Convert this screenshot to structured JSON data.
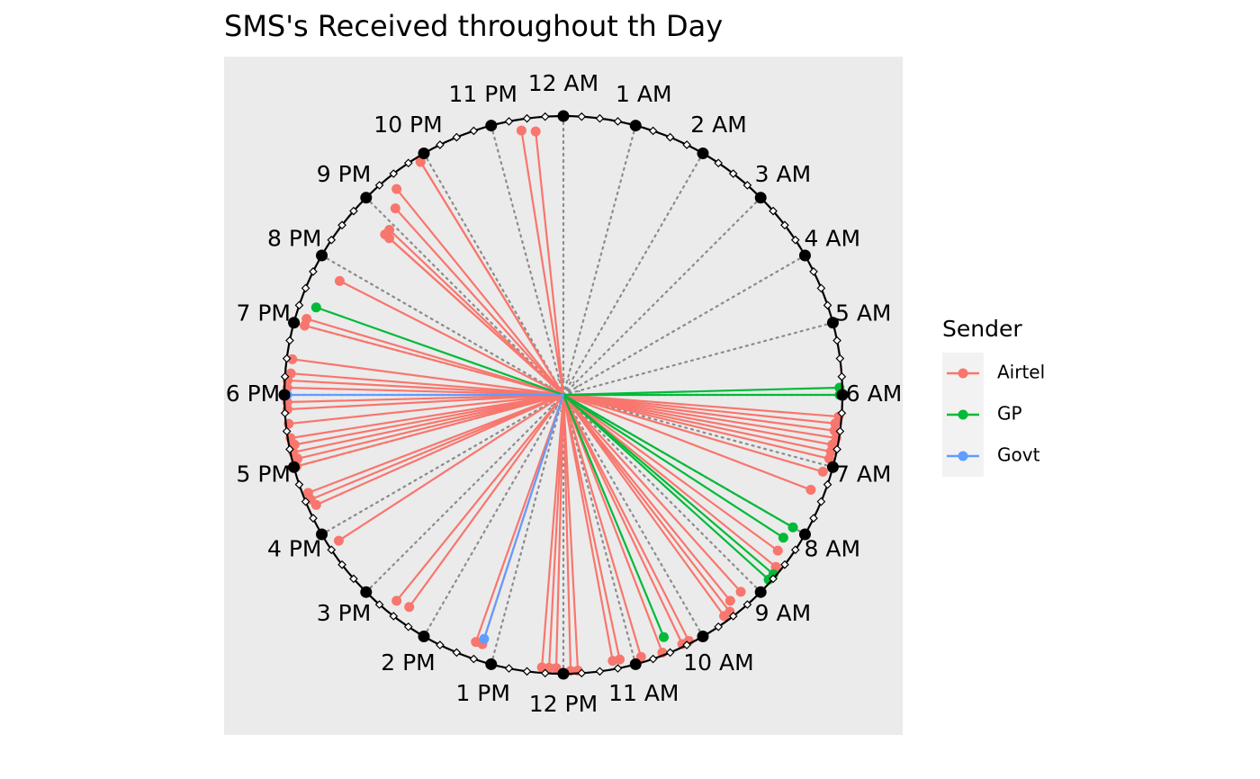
{
  "chart_data": {
    "type": "radial-line",
    "title": "SMS's Received throughout th Day",
    "hour_labels": [
      "12 AM",
      "1 AM",
      "2 AM",
      "3 AM",
      "4 AM",
      "5 AM",
      "6 AM",
      "7 AM",
      "8 AM",
      "9 AM",
      "10 AM",
      "11 AM",
      "12 PM",
      "1 PM",
      "2 PM",
      "3 PM",
      "4 PM",
      "5 PM",
      "6 PM",
      "7 PM",
      "8 PM",
      "9 PM",
      "10 PM",
      "11 PM"
    ],
    "legend": {
      "title": "Sender",
      "position": "right"
    },
    "colors": {
      "Airtel": "#F8766D",
      "GP": "#00BA38",
      "Govt": "#619CFF"
    },
    "series": [
      {
        "name": "Airtel",
        "points": [
          [
            23.6,
            0.95
          ],
          [
            23.4,
            0.96
          ],
          [
            21.9,
            0.98
          ],
          [
            21.9,
            0.98
          ],
          [
            21.4,
            0.95
          ],
          [
            21.2,
            0.9
          ],
          [
            20.9,
            0.86
          ],
          [
            20.8,
            0.86
          ],
          [
            20.8,
            0.84
          ],
          [
            19.8,
            0.9
          ],
          [
            19.1,
            0.96
          ],
          [
            19.0,
            0.96
          ],
          [
            18.5,
            0.98
          ],
          [
            18.3,
            0.98
          ],
          [
            18.2,
            0.99
          ],
          [
            18.1,
            0.99
          ],
          [
            17.9,
            0.99
          ],
          [
            17.8,
            0.99
          ],
          [
            17.6,
            0.99
          ],
          [
            17.4,
            0.99
          ],
          [
            17.3,
            0.98
          ],
          [
            17.2,
            0.99
          ],
          [
            17.1,
            0.98
          ],
          [
            17.0,
            0.99
          ],
          [
            16.6,
            0.98
          ],
          [
            16.5,
            0.98
          ],
          [
            16.4,
            0.97
          ],
          [
            15.8,
            0.96
          ],
          [
            14.6,
            0.95
          ],
          [
            14.4,
            0.94
          ],
          [
            13.3,
            0.94
          ],
          [
            13.2,
            0.94
          ],
          [
            12.3,
            0.98
          ],
          [
            12.2,
            0.98
          ],
          [
            12.1,
            0.98
          ],
          [
            11.9,
            0.99
          ],
          [
            11.8,
            0.99
          ],
          [
            11.3,
            0.97
          ],
          [
            11.2,
            0.97
          ],
          [
            10.9,
            0.98
          ],
          [
            10.6,
            0.99
          ],
          [
            10.3,
            0.99
          ],
          [
            10.2,
            0.99
          ],
          [
            9.6,
            0.98
          ],
          [
            9.5,
            0.98
          ],
          [
            9.4,
            0.95
          ],
          [
            9.2,
            0.95
          ],
          [
            8.6,
            0.98
          ],
          [
            8.4,
            0.95
          ],
          [
            7.4,
            0.95
          ],
          [
            7.1,
            0.97
          ],
          [
            6.3,
            0.99
          ],
          [
            6.4,
            0.98
          ],
          [
            6.5,
            0.98
          ],
          [
            6.6,
            0.99
          ],
          [
            6.7,
            0.98
          ],
          [
            6.8,
            0.98
          ],
          [
            6.9,
            0.98
          ]
        ]
      },
      {
        "name": "GP",
        "points": [
          [
            5.9,
            0.99
          ],
          [
            6.0,
            0.99
          ],
          [
            8.0,
            0.95
          ],
          [
            8.2,
            0.94
          ],
          [
            8.7,
            0.99
          ],
          [
            8.8,
            0.99
          ],
          [
            10.5,
            0.94
          ],
          [
            19.3,
            0.94
          ]
        ]
      },
      {
        "name": "Govt",
        "points": [
          [
            18.0,
            0.99
          ],
          [
            13.2,
            0.92
          ]
        ]
      }
    ]
  }
}
